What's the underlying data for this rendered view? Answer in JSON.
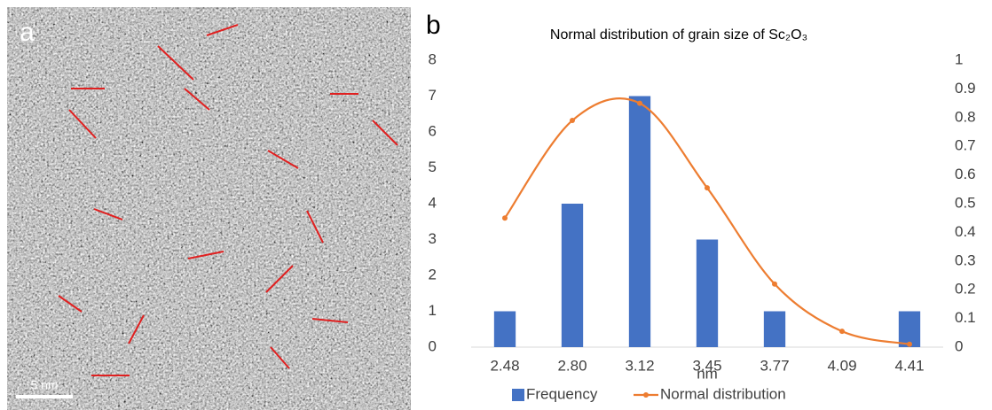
{
  "panels": {
    "left": "a",
    "right": "b"
  },
  "image": {
    "scale_bar": "5 nm"
  },
  "chart_data": {
    "type": "bar",
    "title": "Normal distribution of grain size of Sc₂O₃",
    "x_label": "nm",
    "categories": [
      "2.48",
      "2.80",
      "3.12",
      "3.45",
      "3.77",
      "4.09",
      "4.41"
    ],
    "series": [
      {
        "name": "Frequency",
        "type": "bar",
        "color": "#4472c4",
        "values": [
          1,
          4,
          7,
          3,
          1,
          0,
          1
        ]
      },
      {
        "name": "Normal distribution",
        "type": "line",
        "axis": "y2",
        "color": "#ed7d31",
        "values": [
          0.45,
          0.79,
          0.85,
          0.555,
          0.22,
          0.055,
          0.01
        ]
      }
    ],
    "ylim": [
      0,
      8
    ],
    "yticks": [
      0,
      1,
      2,
      3,
      4,
      5,
      6,
      7,
      8
    ],
    "y2lim": [
      0,
      1
    ],
    "y2ticks": [
      0,
      0.1,
      0.2,
      0.3,
      0.4,
      0.5,
      0.6,
      0.7,
      0.8,
      0.9,
      1
    ],
    "grid": false,
    "legend": "bottom"
  }
}
